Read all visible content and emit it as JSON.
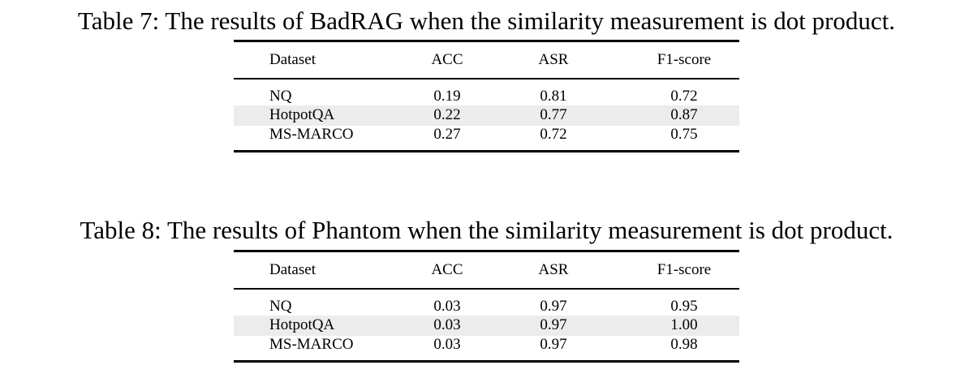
{
  "tables": [
    {
      "caption": "Table 7: The results of BadRAG when the similarity measurement is dot product.",
      "headers": [
        "Dataset",
        "ACC",
        "ASR",
        "F1-score"
      ],
      "rows": [
        [
          "NQ",
          "0.19",
          "0.81",
          "0.72"
        ],
        [
          "HotpotQA",
          "0.22",
          "0.77",
          "0.87"
        ],
        [
          "MS-MARCO",
          "0.27",
          "0.72",
          "0.75"
        ]
      ]
    },
    {
      "caption": "Table 8: The results of Phantom when the similarity measurement is dot product.",
      "headers": [
        "Dataset",
        "ACC",
        "ASR",
        "F1-score"
      ],
      "rows": [
        [
          "NQ",
          "0.03",
          "0.97",
          "0.95"
        ],
        [
          "HotpotQA",
          "0.03",
          "0.97",
          "1.00"
        ],
        [
          "MS-MARCO",
          "0.03",
          "0.97",
          "0.98"
        ]
      ]
    }
  ],
  "colors": {
    "text": "#000000",
    "shaded_row": "#ececec"
  }
}
